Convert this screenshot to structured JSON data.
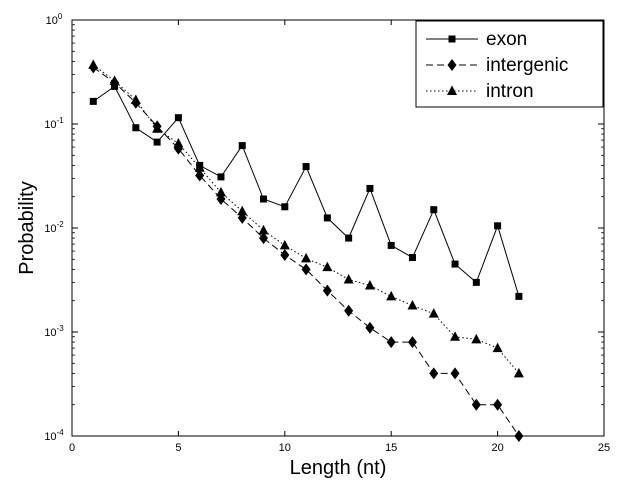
{
  "chart_data": {
    "type": "line",
    "title": "",
    "xlabel": "Length (nt)",
    "ylabel": "Probability",
    "xlim": [
      0,
      25
    ],
    "ylim": [
      0.0001,
      1
    ],
    "yscale": "log",
    "grid": false,
    "legend_position": "top-right",
    "x_ticks": [
      0,
      5,
      10,
      15,
      20,
      25
    ],
    "x_tick_labels": [
      "0",
      "5",
      "10",
      "15",
      "20",
      "25"
    ],
    "y_ticks": [
      0.0001,
      0.001,
      0.01,
      0.1,
      1
    ],
    "y_tick_labels": [
      {
        "base": "10",
        "exp": "-4"
      },
      {
        "base": "10",
        "exp": "-3"
      },
      {
        "base": "10",
        "exp": "-2"
      },
      {
        "base": "10",
        "exp": "-1"
      },
      {
        "base": "10",
        "exp": "0"
      }
    ],
    "series": [
      {
        "name": "exon",
        "marker": "square",
        "line": "solid",
        "x": [
          1,
          2,
          3,
          4,
          5,
          6,
          7,
          8,
          9,
          10,
          11,
          12,
          13,
          14,
          15,
          16,
          17,
          18,
          19,
          20,
          21
        ],
        "y": [
          0.165,
          0.23,
          0.092,
          0.067,
          0.115,
          0.04,
          0.031,
          0.062,
          0.019,
          0.016,
          0.039,
          0.0125,
          0.008,
          0.024,
          0.0068,
          0.0052,
          0.015,
          0.0045,
          0.003,
          0.0105,
          0.0022
        ]
      },
      {
        "name": "intergenic",
        "marker": "diamond",
        "line": "dashed",
        "x": [
          1,
          2,
          3,
          4,
          5,
          6,
          7,
          8,
          9,
          10,
          11,
          12,
          13,
          14,
          15,
          16,
          17,
          18,
          19,
          20,
          21
        ],
        "y": [
          0.35,
          0.25,
          0.16,
          0.095,
          0.058,
          0.032,
          0.019,
          0.0125,
          0.008,
          0.0055,
          0.004,
          0.0025,
          0.0016,
          0.0011,
          0.0008,
          0.0008,
          0.0004,
          0.0004,
          0.0002,
          0.0002,
          0.0001
        ]
      },
      {
        "name": "intron",
        "marker": "triangle",
        "line": "dotted",
        "x": [
          1,
          2,
          3,
          4,
          5,
          6,
          7,
          8,
          9,
          10,
          11,
          12,
          13,
          14,
          15,
          16,
          17,
          18,
          19,
          20,
          21
        ],
        "y": [
          0.37,
          0.26,
          0.17,
          0.09,
          0.065,
          0.038,
          0.022,
          0.0145,
          0.0095,
          0.0068,
          0.0051,
          0.0042,
          0.0032,
          0.0028,
          0.0022,
          0.0018,
          0.0015,
          0.0009,
          0.00085,
          0.0007,
          0.0004
        ]
      }
    ]
  }
}
